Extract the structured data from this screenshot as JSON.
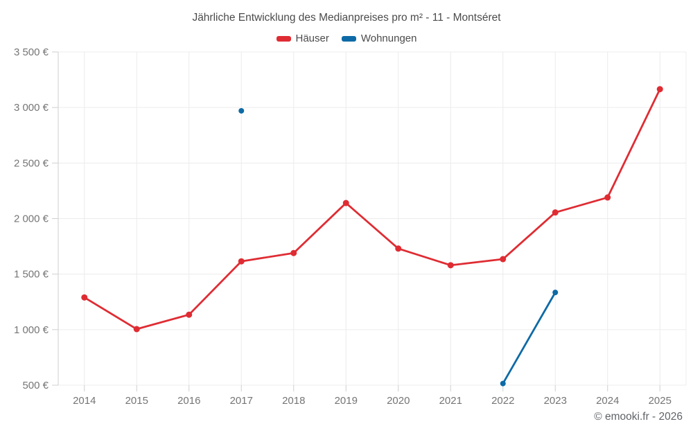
{
  "title": "Jährliche Entwicklung des Medianpreises pro m² - 11 - Montséret",
  "footer": "© emooki.fr - 2026",
  "colors": {
    "haeuser_red": "#df2c33",
    "wohnungen_blue": "#0e6aa6",
    "gridline": "#ececec",
    "axis": "#cfcfcf",
    "tick_label": "#757575",
    "title_text": "#4b4b4b"
  },
  "chart_data": {
    "type": "line",
    "title": "Jährliche Entwicklung des Medianpreises pro m² - 11 - Montséret",
    "categories": [
      "2014",
      "2015",
      "2016",
      "2017",
      "2018",
      "2019",
      "2020",
      "2021",
      "2022",
      "2023",
      "2024",
      "2025"
    ],
    "series": [
      {
        "name": "Häuser",
        "color": "#df2c33",
        "values": [
          1290,
          1005,
          1135,
          1615,
          1690,
          2140,
          1730,
          1580,
          1635,
          2055,
          2190,
          3165
        ]
      },
      {
        "name": "Wohnungen",
        "color": "#0e6aa6",
        "values": [
          null,
          null,
          null,
          2970,
          null,
          null,
          null,
          null,
          515,
          1335,
          null,
          null
        ]
      }
    ],
    "xlabel": "",
    "ylabel": "",
    "ylim": [
      500,
      3500
    ],
    "grid": true,
    "legend_position": "top",
    "y_ticks": [
      {
        "value": 500,
        "label": "500 €"
      },
      {
        "value": 1000,
        "label": "1 000 €"
      },
      {
        "value": 1500,
        "label": "1 500 €"
      },
      {
        "value": 2000,
        "label": "2 000 €"
      },
      {
        "value": 2500,
        "label": "2 500 €"
      },
      {
        "value": 3000,
        "label": "3 000 €"
      },
      {
        "value": 3500,
        "label": "3 500 €"
      }
    ]
  }
}
